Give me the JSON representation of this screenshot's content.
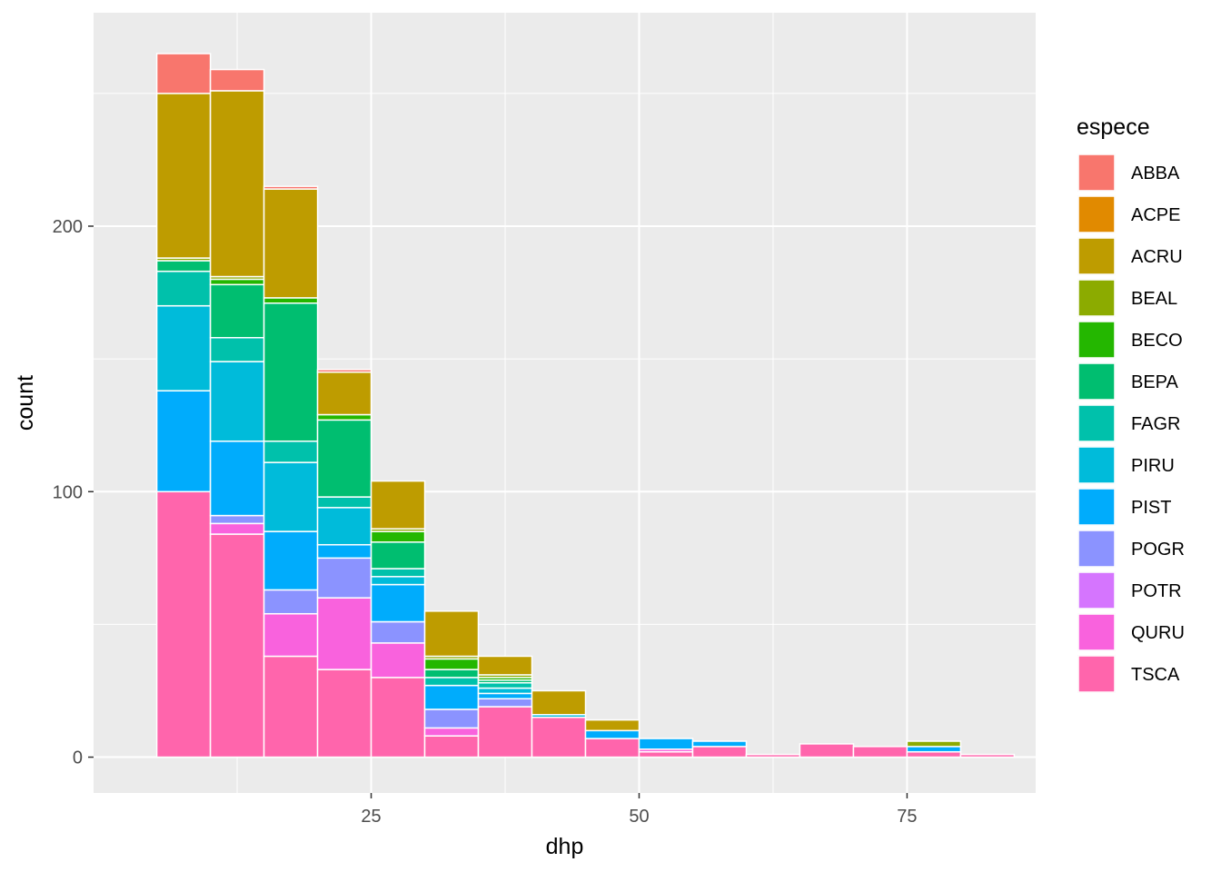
{
  "chart_data": {
    "type": "bar",
    "stacked": true,
    "xlabel": "dhp",
    "ylabel": "count",
    "x_ticks": [
      25,
      50,
      75
    ],
    "y_ticks": [
      0,
      100,
      200
    ],
    "xlim": [
      -0.9,
      87.0
    ],
    "ylim": [
      -13.5,
      280.4
    ],
    "bin_width": 5,
    "bins": [
      [
        5,
        10
      ],
      [
        10,
        15
      ],
      [
        15,
        20
      ],
      [
        20,
        25
      ],
      [
        25,
        30
      ],
      [
        30,
        35
      ],
      [
        35,
        40
      ],
      [
        40,
        45
      ],
      [
        45,
        50
      ],
      [
        50,
        55
      ],
      [
        55,
        60
      ],
      [
        60,
        65
      ],
      [
        65,
        70
      ],
      [
        70,
        75
      ],
      [
        75,
        80
      ],
      [
        80,
        85
      ]
    ],
    "grid": true,
    "legend": {
      "title": "espece",
      "position": "right"
    },
    "series": [
      {
        "name": "ABBA",
        "color": "#F8766D",
        "values": [
          15,
          8,
          1,
          1,
          0,
          0,
          0,
          0,
          0,
          0,
          0,
          0,
          0,
          0,
          0,
          0
        ]
      },
      {
        "name": "ACPE",
        "color": "#E18A00",
        "values": [
          0,
          0,
          0,
          0,
          0,
          0,
          0,
          0,
          0,
          0,
          0,
          0,
          0,
          0,
          0,
          0
        ]
      },
      {
        "name": "ACRU",
        "color": "#BE9C00",
        "values": [
          62,
          70,
          41,
          16,
          18,
          17,
          7,
          9,
          4,
          0,
          0,
          0,
          0,
          0,
          0,
          0
        ]
      },
      {
        "name": "BEAL",
        "color": "#8CAB00",
        "values": [
          1,
          1,
          0,
          0,
          1,
          1,
          1,
          0,
          0,
          0,
          0,
          0,
          0,
          0,
          2,
          0
        ]
      },
      {
        "name": "BECO",
        "color": "#24B700",
        "values": [
          0,
          2,
          2,
          2,
          4,
          4,
          1,
          0,
          0,
          0,
          0,
          0,
          0,
          0,
          0,
          0
        ]
      },
      {
        "name": "BEPA",
        "color": "#00BE70",
        "values": [
          4,
          20,
          52,
          29,
          10,
          3,
          1,
          0,
          0,
          0,
          0,
          0,
          0,
          0,
          0,
          0
        ]
      },
      {
        "name": "FAGR",
        "color": "#00C1AB",
        "values": [
          13,
          9,
          8,
          4,
          3,
          3,
          2,
          0,
          0,
          0,
          0,
          0,
          0,
          0,
          0,
          0
        ]
      },
      {
        "name": "PIRU",
        "color": "#00BBDA",
        "values": [
          32,
          30,
          26,
          14,
          3,
          0,
          2,
          1,
          0,
          0,
          0,
          0,
          0,
          0,
          0,
          0
        ]
      },
      {
        "name": "PIST",
        "color": "#00ACFC",
        "values": [
          38,
          28,
          22,
          5,
          14,
          9,
          2,
          0,
          3,
          4,
          2,
          0,
          0,
          0,
          2,
          0
        ]
      },
      {
        "name": "POGR",
        "color": "#8B93FF",
        "values": [
          0,
          3,
          9,
          15,
          8,
          7,
          3,
          0,
          0,
          0,
          0,
          0,
          0,
          0,
          0,
          0
        ]
      },
      {
        "name": "POTR",
        "color": "#D575FE",
        "values": [
          0,
          0,
          0,
          0,
          0,
          0,
          0,
          0,
          0,
          0,
          0,
          0,
          0,
          0,
          0,
          0
        ]
      },
      {
        "name": "QURU",
        "color": "#F962DD",
        "values": [
          0,
          4,
          16,
          27,
          13,
          3,
          0,
          0,
          0,
          1,
          0,
          0,
          0,
          0,
          0,
          0
        ]
      },
      {
        "name": "TSCA",
        "color": "#FF65AC",
        "values": [
          100,
          84,
          38,
          33,
          30,
          8,
          19,
          15,
          7,
          2,
          4,
          1,
          5,
          4,
          2,
          1
        ]
      }
    ]
  }
}
